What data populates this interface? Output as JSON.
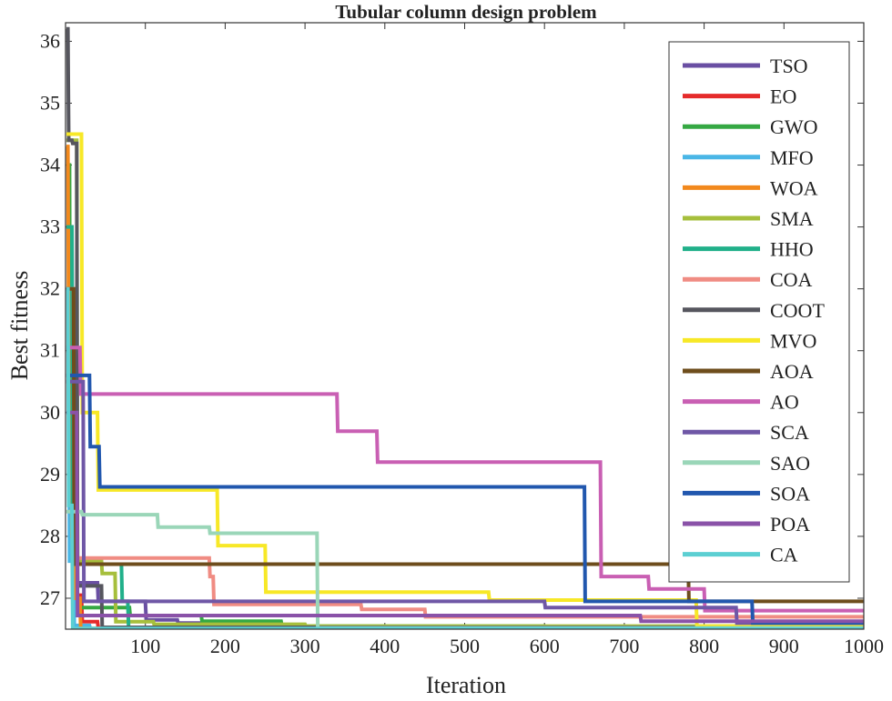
{
  "chart_data": {
    "type": "line",
    "title": "Tubular column design problem",
    "xlabel": "Iteration",
    "ylabel": "Best fitness",
    "xlim": [
      0,
      1000
    ],
    "ylim": [
      26.5,
      36.3
    ],
    "xticks": [
      100,
      200,
      300,
      400,
      500,
      600,
      700,
      800,
      900,
      1000
    ],
    "yticks": [
      27,
      28,
      29,
      30,
      31,
      32,
      33,
      34,
      35,
      36
    ],
    "legend_position": "top-right",
    "series": [
      {
        "name": "TSO",
        "color": "#6a4fa3",
        "x": [
          1,
          8,
          9,
          14,
          15,
          40,
          41,
          100,
          101,
          140,
          141,
          220,
          221,
          300,
          301,
          500,
          501,
          1000
        ],
        "y": [
          33,
          33,
          30,
          30,
          27.25,
          27.25,
          26.95,
          26.95,
          26.65,
          26.65,
          26.6,
          26.6,
          26.55,
          26.55,
          26.53,
          26.53,
          26.51,
          26.51
        ]
      },
      {
        "name": "EO",
        "color": "#e52b2b",
        "x": [
          1,
          6,
          7,
          12,
          13,
          20,
          21,
          40,
          41,
          1000
        ],
        "y": [
          31,
          31,
          28.3,
          28.3,
          27.05,
          27.05,
          26.62,
          26.62,
          26.52,
          26.52
        ]
      },
      {
        "name": "GWO",
        "color": "#35a843",
        "x": [
          1,
          5,
          6,
          14,
          15,
          80,
          81,
          170,
          171,
          270,
          271,
          600,
          601,
          1000
        ],
        "y": [
          34,
          34,
          28.3,
          28.3,
          26.85,
          26.85,
          26.72,
          26.72,
          26.63,
          26.63,
          26.55,
          26.55,
          26.52,
          26.52
        ]
      },
      {
        "name": "MFO",
        "color": "#4ab6e6",
        "x": [
          1,
          4,
          5,
          10,
          11,
          30,
          31,
          1000
        ],
        "y": [
          32,
          32,
          27.6,
          27.6,
          26.56,
          26.56,
          26.51,
          26.51
        ]
      },
      {
        "name": "WOA",
        "color": "#f2891d",
        "x": [
          1,
          3,
          4,
          7,
          8,
          12,
          13,
          18,
          19,
          1000
        ],
        "y": [
          34.3,
          34.3,
          31,
          31,
          28,
          28,
          27,
          27,
          26.51,
          26.51
        ]
      },
      {
        "name": "SMA",
        "color": "#a6bf3c",
        "x": [
          1,
          14,
          15,
          45,
          46,
          62,
          63,
          110,
          111,
          300,
          301,
          1000
        ],
        "y": [
          34.4,
          34.4,
          27.6,
          27.6,
          27.4,
          27.4,
          26.62,
          26.62,
          26.58,
          26.58,
          26.55,
          26.55
        ]
      },
      {
        "name": "HHO",
        "color": "#21b08a",
        "x": [
          1,
          8,
          9,
          70,
          71,
          78,
          79,
          1000
        ],
        "y": [
          33,
          33,
          27.55,
          27.55,
          26.95,
          26.95,
          26.52,
          26.52
        ]
      },
      {
        "name": "COA",
        "color": "#f08c83",
        "x": [
          1,
          10,
          11,
          180,
          181,
          185,
          186,
          370,
          371,
          450,
          451,
          1000
        ],
        "y": [
          32,
          32,
          27.65,
          27.65,
          27.35,
          27.35,
          26.9,
          26.9,
          26.82,
          26.82,
          26.7,
          26.7
        ]
      },
      {
        "name": "COOT",
        "color": "#56565e",
        "x": [
          1,
          3,
          4,
          8,
          9,
          14,
          15,
          45,
          46,
          1000
        ],
        "y": [
          36.2,
          36.2,
          34.4,
          34.4,
          34.35,
          34.35,
          27.2,
          27.2,
          26.53,
          26.53
        ]
      },
      {
        "name": "MVO",
        "color": "#f7e827",
        "x": [
          1,
          20,
          21,
          40,
          41,
          190,
          191,
          250,
          251,
          530,
          531,
          790,
          791,
          1000
        ],
        "y": [
          34.5,
          34.5,
          30,
          30,
          28.75,
          28.75,
          27.85,
          27.85,
          27.1,
          27.1,
          26.97,
          26.97,
          26.55,
          26.55
        ]
      },
      {
        "name": "AOA",
        "color": "#6e4d1c",
        "x": [
          1,
          10,
          11,
          780,
          781,
          1000
        ],
        "y": [
          32,
          32,
          27.55,
          27.55,
          26.95,
          26.95
        ]
      },
      {
        "name": "AO",
        "color": "#c95fb3",
        "x": [
          1,
          18,
          19,
          340,
          341,
          390,
          391,
          670,
          671,
          730,
          731,
          800,
          801,
          1000
        ],
        "y": [
          31.05,
          31.05,
          30.3,
          30.3,
          29.7,
          29.7,
          29.2,
          29.2,
          27.35,
          27.35,
          27.15,
          27.15,
          26.8,
          26.8
        ]
      },
      {
        "name": "SCA",
        "color": "#6f57a6",
        "x": [
          1,
          22,
          23,
          600,
          601,
          840,
          841,
          1000
        ],
        "y": [
          30.5,
          30.5,
          26.95,
          26.95,
          26.85,
          26.85,
          26.6,
          26.6
        ]
      },
      {
        "name": "SAO",
        "color": "#9ad6b8",
        "x": [
          1,
          20,
          21,
          115,
          116,
          180,
          181,
          315,
          316,
          1000
        ],
        "y": [
          28.4,
          28.4,
          28.35,
          28.35,
          28.15,
          28.15,
          28.05,
          28.05,
          26.52,
          26.52
        ]
      },
      {
        "name": "SOA",
        "color": "#2157ae",
        "x": [
          1,
          20,
          21,
          30,
          31,
          42,
          43,
          650,
          651,
          860,
          861,
          1000
        ],
        "y": [
          30.6,
          30.6,
          30.6,
          30.6,
          29.45,
          29.45,
          28.8,
          28.8,
          26.95,
          26.95,
          26.6,
          26.6
        ]
      },
      {
        "name": "POA",
        "color": "#8a52a8",
        "x": [
          1,
          14,
          15,
          720,
          721,
          1000
        ],
        "y": [
          30,
          30,
          26.72,
          26.72,
          26.63,
          26.63
        ]
      },
      {
        "name": "CA",
        "color": "#5ccfd2",
        "x": [
          1,
          3,
          4,
          8,
          9,
          1000
        ],
        "y": [
          32,
          32,
          28.5,
          28.5,
          26.51,
          26.51
        ]
      }
    ]
  }
}
